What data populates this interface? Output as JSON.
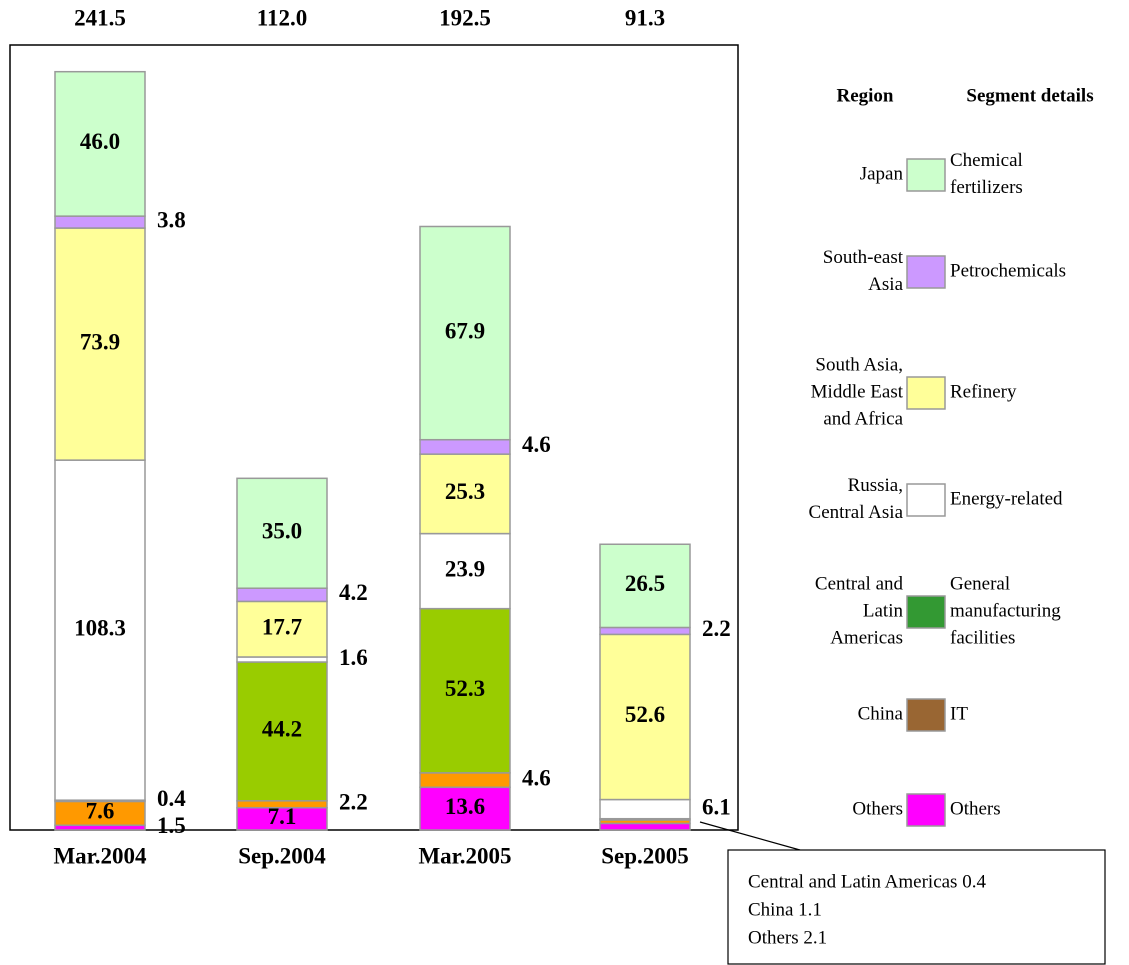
{
  "chart_data": {
    "type": "stacked_bar",
    "categories": [
      "Mar.2004",
      "Sep.2004",
      "Mar.2005",
      "Sep.2005"
    ],
    "totals": [
      241.5,
      112.0,
      192.5,
      91.3
    ],
    "total_labels": [
      "241.5",
      "112.0",
      "192.5",
      "91.3"
    ],
    "ylim": [
      0,
      250
    ],
    "legend_headers": [
      "Region",
      "Segment details"
    ],
    "series": [
      {
        "name": [
          "Others"
        ],
        "region": [
          "Others"
        ],
        "color": "#ff00ff",
        "legend_color": "#ff00ff",
        "values": [
          1.5,
          7.1,
          13.6,
          2.1
        ],
        "value_labels": [
          "1.5",
          "7.1",
          "13.6",
          null
        ]
      },
      {
        "name": [
          "IT"
        ],
        "region": [
          "China"
        ],
        "color": "#ff9900",
        "legend_color": "#996633",
        "values": [
          7.6,
          2.2,
          4.6,
          1.1
        ],
        "value_labels": [
          "7.6",
          "2.2",
          "4.6",
          null
        ]
      },
      {
        "name": [
          "General",
          "manufacturing",
          "facilities"
        ],
        "region": [
          "Central and",
          "Latin",
          "Americas"
        ],
        "color": "#99cc00",
        "legend_color": "#339933",
        "values": [
          0.4,
          44.2,
          52.3,
          0.4
        ],
        "value_labels": [
          "0.4",
          "44.2",
          "52.3",
          null
        ]
      },
      {
        "name": [
          "Energy-related"
        ],
        "region": [
          "Russia,",
          "Central Asia"
        ],
        "color": "#ffffff",
        "legend_color": "#ffffff",
        "values": [
          108.3,
          1.6,
          23.9,
          6.1
        ],
        "value_labels": [
          "108.3",
          "1.6",
          "23.9",
          "6.1"
        ]
      },
      {
        "name": [
          "Refinery"
        ],
        "region": [
          "South Asia,",
          "Middle East",
          "and Africa"
        ],
        "color": "#ffff99",
        "legend_color": "#ffff99",
        "values": [
          73.9,
          17.7,
          25.3,
          52.6
        ],
        "value_labels": [
          "73.9",
          "17.7",
          "25.3",
          "52.6"
        ]
      },
      {
        "name": [
          "Petrochemicals"
        ],
        "region": [
          "South-east",
          "Asia"
        ],
        "color": "#cc99ff",
        "legend_color": "#cc99ff",
        "values": [
          3.8,
          4.2,
          4.6,
          2.2
        ],
        "value_labels": [
          "3.8",
          "4.2",
          "4.6",
          "2.2"
        ]
      },
      {
        "name": [
          "Chemical",
          "fertilizers"
        ],
        "region": [
          "Japan"
        ],
        "color": "#ccffcc",
        "legend_color": "#ccffcc",
        "values": [
          46.0,
          35.0,
          67.9,
          26.5
        ],
        "value_labels": [
          "46.0",
          "35.0",
          "67.9",
          "26.5"
        ]
      }
    ],
    "callout": [
      "Central and Latin Americas 0.4",
      "China 1.1",
      "Others 2.1"
    ]
  }
}
